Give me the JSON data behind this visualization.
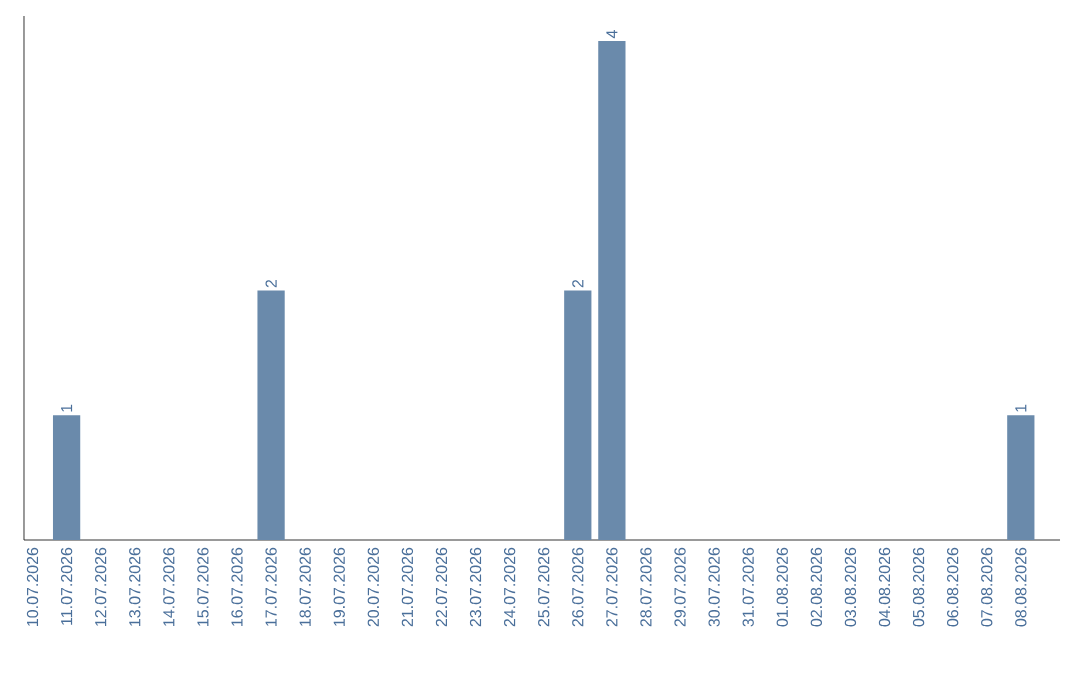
{
  "chart_data": {
    "type": "bar",
    "categories": [
      "10.07.2026",
      "11.07.2026",
      "12.07.2026",
      "13.07.2026",
      "14.07.2026",
      "15.07.2026",
      "16.07.2026",
      "17.07.2026",
      "18.07.2026",
      "19.07.2026",
      "20.07.2026",
      "21.07.2026",
      "22.07.2026",
      "23.07.2026",
      "24.07.2026",
      "25.07.2026",
      "26.07.2026",
      "27.07.2026",
      "28.07.2026",
      "29.07.2026",
      "30.07.2026",
      "31.07.2026",
      "01.08.2026",
      "02.08.2026",
      "03.08.2026",
      "04.08.2026",
      "05.08.2026",
      "06.08.2026",
      "07.08.2026",
      "08.08.2026"
    ],
    "values": [
      0,
      1,
      0,
      0,
      0,
      0,
      0,
      2,
      0,
      0,
      0,
      0,
      0,
      0,
      0,
      0,
      2,
      4,
      0,
      0,
      0,
      0,
      0,
      0,
      0,
      0,
      0,
      0,
      0,
      1
    ],
    "value_labels": [
      null,
      "1",
      null,
      null,
      null,
      null,
      null,
      "2",
      null,
      null,
      null,
      null,
      null,
      null,
      null,
      null,
      "2",
      "4",
      null,
      null,
      null,
      null,
      null,
      null,
      null,
      null,
      null,
      null,
      null,
      "1"
    ],
    "color": "#6a8aab",
    "ylim": [
      0,
      4.2
    ],
    "tick_labels": "x"
  }
}
